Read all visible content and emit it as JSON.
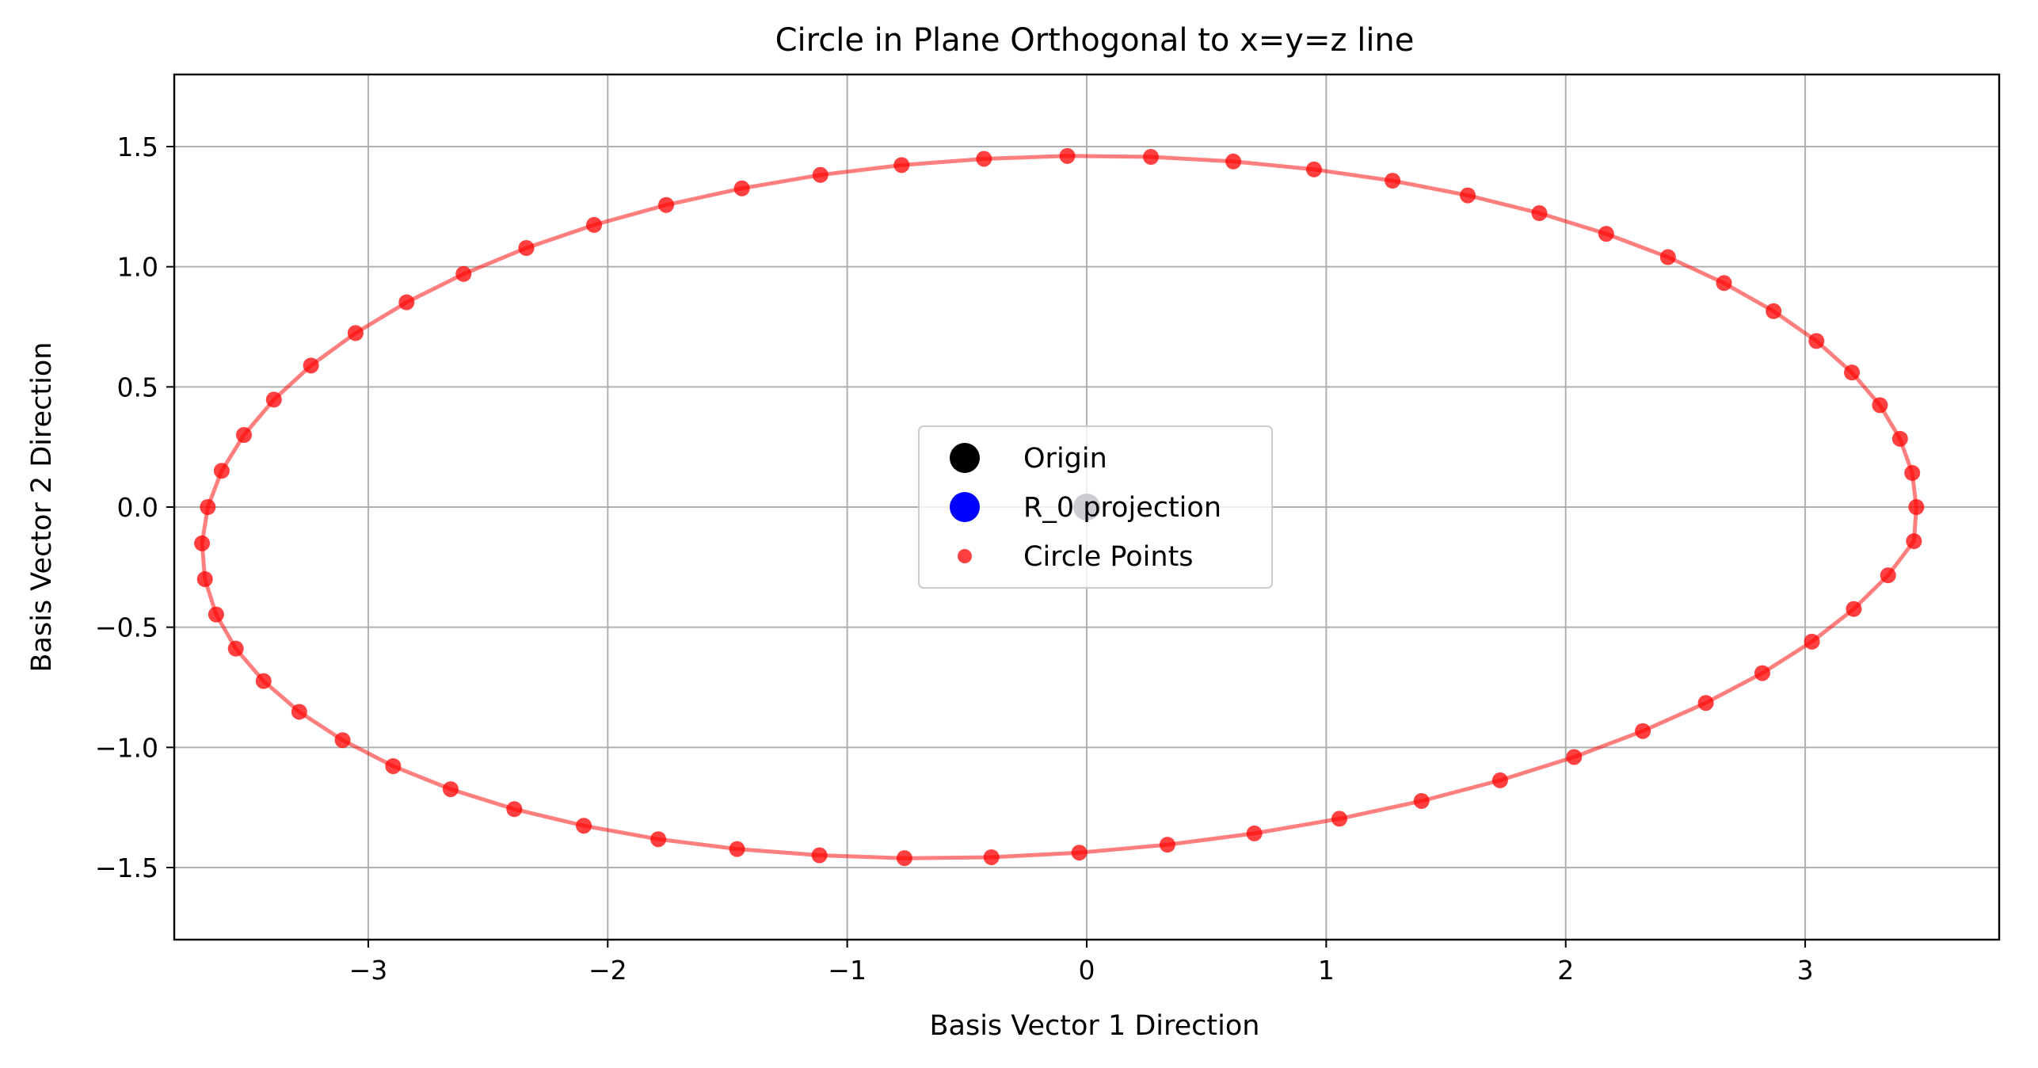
{
  "chart_data": {
    "type": "scatter",
    "title": "Circle in Plane Orthogonal to x=y=z line",
    "xlabel": "Basis Vector 1 Direction",
    "ylabel": "Basis Vector 2 Direction",
    "xlim": [
      -3.81,
      3.81
    ],
    "ylim": [
      -1.8,
      1.8
    ],
    "xticks": [
      -3,
      -2,
      -1,
      0,
      1,
      2,
      3
    ],
    "xtick_labels": [
      "−3",
      "−2",
      "−1",
      "0",
      "1",
      "2",
      "3"
    ],
    "yticks": [
      -1.5,
      -1.0,
      -0.5,
      0.0,
      0.5,
      1.0,
      1.5
    ],
    "ytick_labels": [
      "−1.5",
      "−1.0",
      "−0.5",
      "0.0",
      "0.5",
      "1.0",
      "1.5"
    ],
    "grid": true,
    "legend_position": "center",
    "series": [
      {
        "name": "Origin",
        "color": "#000000",
        "marker": "circle-large",
        "x": [
          0
        ],
        "y": [
          0
        ]
      },
      {
        "name": "R_0 projection",
        "color": "#0000ff",
        "marker": "circle-large",
        "alpha": 0.15,
        "x": [
          0
        ],
        "y": [
          0
        ]
      },
      {
        "name": "Circle Points",
        "color": "#ff0000",
        "marker": "circle",
        "alpha": 0.75,
        "connected_line": true,
        "line_alpha": 0.5,
        "x": [
          3.464,
          3.447,
          3.396,
          3.312,
          3.195,
          3.047,
          2.868,
          2.661,
          2.427,
          2.169,
          1.89,
          1.591,
          1.277,
          0.949,
          0.612,
          0.268,
          -0.081,
          -0.429,
          -0.773,
          -1.112,
          -1.44,
          -1.756,
          -2.057,
          -2.34,
          -2.602,
          -2.84,
          -3.053,
          -3.239,
          -3.394,
          -3.519,
          -3.612,
          -3.67,
          -3.694,
          -3.682,
          -3.635,
          -3.553,
          -3.437,
          -3.288,
          -3.107,
          -2.896,
          -2.656,
          -2.39,
          -2.1,
          -1.789,
          -1.46,
          -1.116,
          -0.761,
          -0.398,
          -0.031,
          0.337,
          0.7,
          1.055,
          1.398,
          1.726,
          2.035,
          2.322,
          2.585,
          2.821,
          3.028,
          3.203,
          3.346,
          3.454
        ],
        "y": [
          0.0,
          0.142,
          0.284,
          0.424,
          0.56,
          0.691,
          0.815,
          0.932,
          1.04,
          1.137,
          1.223,
          1.297,
          1.358,
          1.405,
          1.438,
          1.457,
          1.461,
          1.449,
          1.423,
          1.382,
          1.326,
          1.257,
          1.174,
          1.078,
          0.97,
          0.852,
          0.724,
          0.589,
          0.447,
          0.3,
          0.151,
          0.0,
          -0.151,
          -0.3,
          -0.447,
          -0.589,
          -0.724,
          -0.852,
          -0.97,
          -1.078,
          -1.174,
          -1.257,
          -1.326,
          -1.382,
          -1.423,
          -1.449,
          -1.461,
          -1.457,
          -1.438,
          -1.405,
          -1.358,
          -1.297,
          -1.223,
          -1.137,
          -1.04,
          -0.932,
          -0.815,
          -0.691,
          -0.56,
          -0.424,
          -0.284,
          -0.142
        ]
      }
    ],
    "legend": [
      {
        "label": "Origin",
        "color": "#000000",
        "marker": "circle-large"
      },
      {
        "label": "R_0 projection",
        "color": "#0000ff",
        "marker": "circle-large"
      },
      {
        "label": "Circle Points",
        "color": "#ff0000",
        "marker": "circle"
      }
    ]
  }
}
